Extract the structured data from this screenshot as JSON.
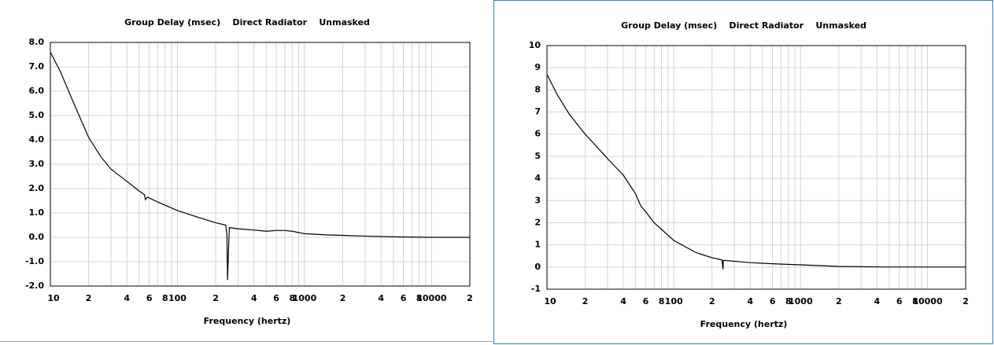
{
  "chart_data": [
    {
      "type": "line",
      "title": "Group Delay (msec)    Direct Radiator    Unmasked",
      "xlabel": "Frequency (hertz)",
      "log_x": true,
      "grid": true,
      "color": "#000000",
      "xlim": [
        10,
        20000
      ],
      "xticks": [
        10,
        {
          "value": 20,
          "label": "2"
        },
        {
          "value": 40,
          "label": "4"
        },
        {
          "value": 60,
          "label": "6"
        },
        {
          "value": 80,
          "label": "8"
        },
        100,
        {
          "value": 200,
          "label": "2"
        },
        {
          "value": 400,
          "label": "4"
        },
        {
          "value": 600,
          "label": "6"
        },
        {
          "value": 800,
          "label": "8"
        },
        1000,
        {
          "value": 2000,
          "label": "2"
        },
        {
          "value": 4000,
          "label": "4"
        },
        {
          "value": 6000,
          "label": "6"
        },
        {
          "value": 8000,
          "label": "8"
        },
        10000,
        {
          "value": 20000,
          "label": "2"
        }
      ],
      "xminorticks": [
        30,
        50,
        70,
        90,
        300,
        500,
        700,
        900,
        3000,
        5000,
        7000,
        9000
      ],
      "ylim": [
        -2,
        8
      ],
      "yticks": [
        {
          "value": -2,
          "label": "-2.0"
        },
        {
          "value": -1,
          "label": "-1.0"
        },
        {
          "value": 0,
          "label": "0.0"
        },
        {
          "value": 1,
          "label": "1.0"
        },
        {
          "value": 2,
          "label": "2.0"
        },
        {
          "value": 3,
          "label": "3.0"
        },
        {
          "value": 4,
          "label": "4.0"
        },
        {
          "value": 5,
          "label": "5.0"
        },
        {
          "value": 6,
          "label": "6.0"
        },
        {
          "value": 7,
          "label": "7.0"
        },
        {
          "value": 8,
          "label": "8.0"
        }
      ],
      "x": [
        10,
        12,
        15,
        20,
        25,
        30,
        40,
        50,
        55,
        56,
        58,
        70,
        100,
        150,
        200,
        240,
        245,
        248,
        252,
        256,
        300,
        400,
        500,
        600,
        700,
        800,
        1000,
        1500,
        2000,
        3000,
        5000,
        10000,
        20000
      ],
      "values": [
        7.6,
        6.8,
        5.6,
        4.1,
        3.3,
        2.8,
        2.3,
        1.9,
        1.75,
        1.55,
        1.65,
        1.45,
        1.1,
        0.8,
        0.6,
        0.5,
        0.1,
        -1.75,
        -0.6,
        0.4,
        0.35,
        0.3,
        0.25,
        0.28,
        0.28,
        0.25,
        0.15,
        0.1,
        0.08,
        0.05,
        0.02,
        0,
        0
      ]
    },
    {
      "type": "line",
      "title": "Group Delay (msec)    Direct Radiator    Unmasked",
      "xlabel": "Frequency (hertz)",
      "log_x": true,
      "grid": true,
      "color": "#000000",
      "xlim": [
        10,
        20000
      ],
      "xticks": [
        10,
        {
          "value": 20,
          "label": "2"
        },
        {
          "value": 40,
          "label": "4"
        },
        {
          "value": 60,
          "label": "6"
        },
        {
          "value": 80,
          "label": "8"
        },
        100,
        {
          "value": 200,
          "label": "2"
        },
        {
          "value": 400,
          "label": "4"
        },
        {
          "value": 600,
          "label": "6"
        },
        {
          "value": 800,
          "label": "8"
        },
        1000,
        {
          "value": 2000,
          "label": "2"
        },
        {
          "value": 4000,
          "label": "4"
        },
        {
          "value": 6000,
          "label": "6"
        },
        {
          "value": 8000,
          "label": "8"
        },
        10000,
        {
          "value": 20000,
          "label": "2"
        }
      ],
      "xminorticks": [
        30,
        50,
        70,
        90,
        300,
        500,
        700,
        900,
        3000,
        5000,
        7000,
        9000
      ],
      "ylim": [
        -1,
        10
      ],
      "yticks": [
        -1,
        0,
        1,
        2,
        3,
        4,
        5,
        6,
        7,
        8,
        9,
        10
      ],
      "x": [
        10,
        12,
        15,
        20,
        25,
        30,
        40,
        50,
        55,
        57,
        60,
        70,
        100,
        150,
        200,
        240,
        244,
        246,
        250,
        400,
        600,
        1000,
        2000,
        5000,
        20000
      ],
      "values": [
        8.7,
        7.8,
        6.9,
        6.0,
        5.4,
        4.9,
        4.15,
        3.3,
        2.75,
        2.65,
        2.5,
        2.0,
        1.2,
        0.65,
        0.42,
        0.32,
        -0.1,
        0.3,
        0.3,
        0.2,
        0.15,
        0.1,
        0.03,
        0,
        0
      ]
    }
  ]
}
